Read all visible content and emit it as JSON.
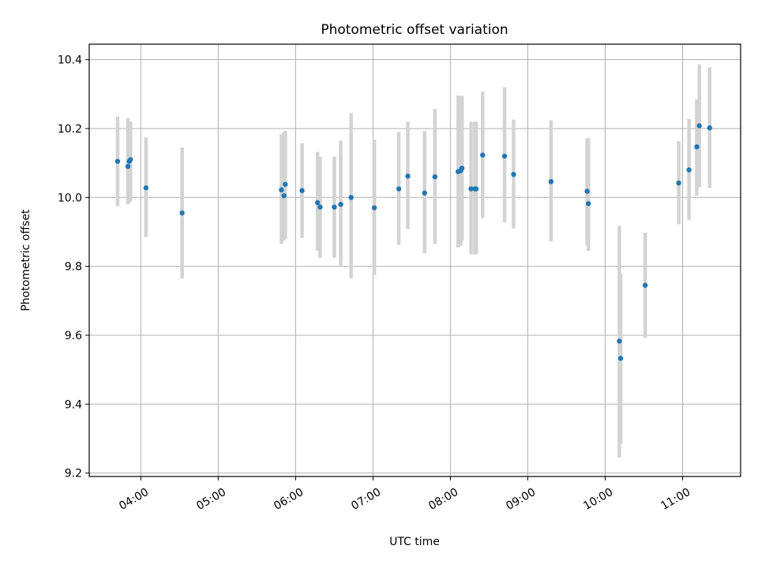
{
  "chart_data": {
    "type": "scatter",
    "title": "Photometric offset variation",
    "xlabel": "UTC time",
    "ylabel": "Photometric offset",
    "x_unit": "UTC time (HH:MM)",
    "xlim": [
      "03:20",
      "11:45"
    ],
    "ylim": [
      9.19,
      10.445
    ],
    "grid": true,
    "x_ticks": [
      "04:00",
      "05:00",
      "06:00",
      "07:00",
      "08:00",
      "09:00",
      "10:00",
      "11:00"
    ],
    "y_ticks": [
      9.2,
      9.4,
      9.6,
      9.8,
      10.0,
      10.2,
      10.4
    ],
    "point_color": "#1f77b4",
    "errorbar_color": "#d3d3d3",
    "points": [
      {
        "x": "03:42",
        "y": 10.105,
        "lo": 9.975,
        "hi": 10.235
      },
      {
        "x": "03:50",
        "y": 10.09,
        "lo": 9.98,
        "hi": 10.23
      },
      {
        "x": "03:51",
        "y": 10.105,
        "lo": 9.985,
        "hi": 10.22
      },
      {
        "x": "03:52",
        "y": 10.11,
        "lo": 9.99,
        "hi": 10.22
      },
      {
        "x": "04:04",
        "y": 10.028,
        "lo": 9.885,
        "hi": 10.175
      },
      {
        "x": "04:32",
        "y": 9.955,
        "lo": 9.765,
        "hi": 10.145
      },
      {
        "x": "05:49",
        "y": 10.022,
        "lo": 9.865,
        "hi": 10.183
      },
      {
        "x": "05:51",
        "y": 10.005,
        "lo": 9.875,
        "hi": 10.19
      },
      {
        "x": "05:52",
        "y": 10.038,
        "lo": 9.88,
        "hi": 10.193
      },
      {
        "x": "06:05",
        "y": 10.02,
        "lo": 9.882,
        "hi": 10.158
      },
      {
        "x": "06:17",
        "y": 9.985,
        "lo": 9.845,
        "hi": 10.132
      },
      {
        "x": "06:19",
        "y": 9.972,
        "lo": 9.825,
        "hi": 10.118
      },
      {
        "x": "06:30",
        "y": 9.972,
        "lo": 9.825,
        "hi": 10.118
      },
      {
        "x": "06:35",
        "y": 9.98,
        "lo": 9.8,
        "hi": 10.165
      },
      {
        "x": "06:43",
        "y": 10.0,
        "lo": 9.765,
        "hi": 10.245
      },
      {
        "x": "07:01",
        "y": 9.97,
        "lo": 9.775,
        "hi": 10.168
      },
      {
        "x": "07:20",
        "y": 10.025,
        "lo": 9.862,
        "hi": 10.19
      },
      {
        "x": "07:27",
        "y": 10.062,
        "lo": 9.908,
        "hi": 10.22
      },
      {
        "x": "07:40",
        "y": 10.013,
        "lo": 9.838,
        "hi": 10.193
      },
      {
        "x": "07:48",
        "y": 10.06,
        "lo": 9.865,
        "hi": 10.257
      },
      {
        "x": "08:06",
        "y": 10.075,
        "lo": 9.855,
        "hi": 10.296
      },
      {
        "x": "08:08",
        "y": 10.078,
        "lo": 9.86,
        "hi": 10.295
      },
      {
        "x": "08:09",
        "y": 10.085,
        "lo": 9.875,
        "hi": 10.295
      },
      {
        "x": "08:16",
        "y": 10.025,
        "lo": 9.835,
        "hi": 10.22
      },
      {
        "x": "08:19",
        "y": 10.025,
        "lo": 9.835,
        "hi": 10.22
      },
      {
        "x": "08:20",
        "y": 10.025,
        "lo": 9.835,
        "hi": 10.22
      },
      {
        "x": "08:25",
        "y": 10.123,
        "lo": 9.94,
        "hi": 10.307
      },
      {
        "x": "08:42",
        "y": 10.12,
        "lo": 9.928,
        "hi": 10.32
      },
      {
        "x": "08:49",
        "y": 10.067,
        "lo": 9.91,
        "hi": 10.226
      },
      {
        "x": "09:18",
        "y": 10.046,
        "lo": 9.872,
        "hi": 10.224
      },
      {
        "x": "09:46",
        "y": 10.018,
        "lo": 9.862,
        "hi": 10.172
      },
      {
        "x": "09:47",
        "y": 9.982,
        "lo": 9.845,
        "hi": 10.172
      },
      {
        "x": "10:11",
        "y": 9.583,
        "lo": 9.245,
        "hi": 9.918
      },
      {
        "x": "10:12",
        "y": 9.533,
        "lo": 9.285,
        "hi": 9.78
      },
      {
        "x": "10:31",
        "y": 9.745,
        "lo": 9.592,
        "hi": 9.898
      },
      {
        "x": "10:57",
        "y": 10.042,
        "lo": 9.922,
        "hi": 10.163
      },
      {
        "x": "11:05",
        "y": 10.08,
        "lo": 9.935,
        "hi": 10.228
      },
      {
        "x": "11:11",
        "y": 10.147,
        "lo": 10.005,
        "hi": 10.285
      },
      {
        "x": "11:13",
        "y": 10.208,
        "lo": 10.03,
        "hi": 10.387
      },
      {
        "x": "11:21",
        "y": 10.202,
        "lo": 10.028,
        "hi": 10.378
      }
    ]
  }
}
